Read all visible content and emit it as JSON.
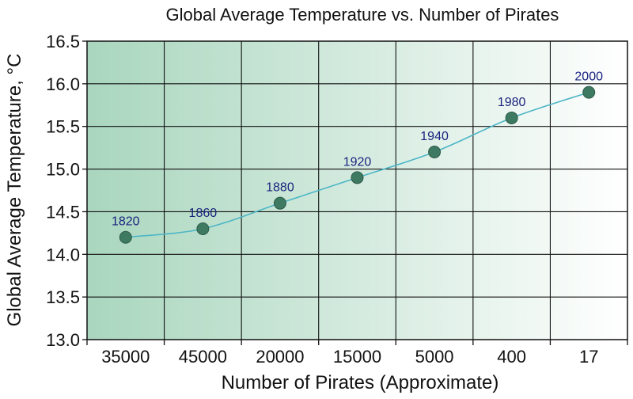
{
  "chart_data": {
    "type": "line",
    "title": "Global Average Temperature vs. Number of Pirates",
    "xlabel": "Number of Pirates (Approximate)",
    "ylabel": "Global Average Temperature, °C",
    "categories": [
      "35000",
      "45000",
      "20000",
      "15000",
      "5000",
      "400",
      "17"
    ],
    "point_labels": [
      "1820",
      "1860",
      "1880",
      "1920",
      "1940",
      "1980",
      "2000"
    ],
    "values": [
      14.2,
      14.3,
      14.6,
      14.9,
      15.2,
      15.6,
      15.9
    ],
    "ylim": [
      13.0,
      16.5
    ],
    "yticks": [
      "13.0",
      "13.5",
      "14.0",
      "14.5",
      "15.0",
      "15.5",
      "16.0",
      "16.5"
    ],
    "grid": true,
    "colors": {
      "background_left": "#a9d6be",
      "background_right": "#ffffff",
      "line": "#4db6c6",
      "marker": "#3e7a62",
      "marker_stroke": "#2d5a47",
      "point_label": "#1a237e",
      "grid": "#111111"
    }
  }
}
